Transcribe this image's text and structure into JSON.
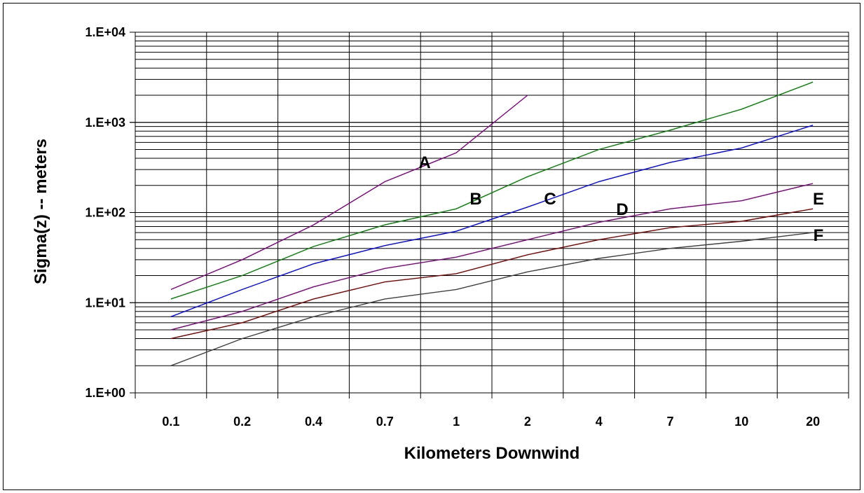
{
  "chart_data": {
    "type": "line",
    "title": "",
    "xlabel": "Kilometers Downwind",
    "ylabel": "Sigma(z) -- meters",
    "y_scale": "log",
    "ylim": [
      1,
      10000
    ],
    "grid": true,
    "legend": "none",
    "categories": [
      "0.1",
      "0.2",
      "0.4",
      "0.7",
      "1",
      "2",
      "4",
      "7",
      "10",
      "20"
    ],
    "y_tick_labels": [
      "1.E+00",
      "1.E+01",
      "1.E+02",
      "1.E+03",
      "1.E+04"
    ],
    "series": [
      {
        "name": "A",
        "color": "#800080",
        "values": [
          14,
          30,
          73,
          220,
          460,
          2000,
          null,
          null,
          null,
          null
        ]
      },
      {
        "name": "B",
        "color": "#008000",
        "values": [
          11,
          20,
          42,
          73,
          110,
          250,
          500,
          820,
          1400,
          2800
        ]
      },
      {
        "name": "C",
        "color": "#0000ff",
        "values": [
          7,
          14,
          27,
          43,
          62,
          115,
          220,
          360,
          520,
          930
        ]
      },
      {
        "name": "D",
        "color": "#800080",
        "values": [
          5,
          8,
          15,
          24,
          32,
          50,
          78,
          110,
          135,
          210
        ]
      },
      {
        "name": "E",
        "color": "#800000",
        "values": [
          4,
          6,
          11,
          17,
          21,
          34,
          50,
          68,
          80,
          110
        ]
      },
      {
        "name": "F",
        "color": "#404040",
        "values": [
          2,
          4,
          7,
          11,
          14,
          22,
          31,
          40,
          48,
          60
        ]
      }
    ]
  }
}
